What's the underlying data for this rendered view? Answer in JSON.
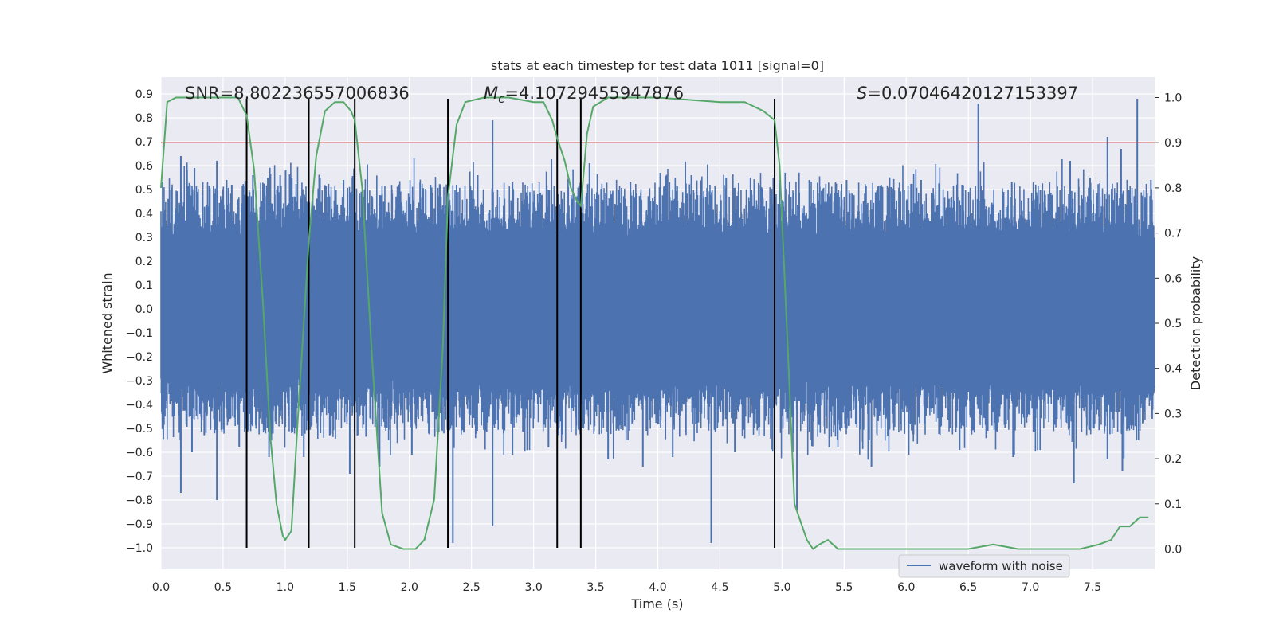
{
  "chart_data": {
    "type": "line",
    "title": "stats at each timestep for test data 1011 [signal=0]",
    "xlabel": "Time (s)",
    "ylabel": "Whitened strain",
    "y2label": "Detection probability",
    "xlim": [
      0.0,
      8.0
    ],
    "ylim": [
      -1.09,
      0.97
    ],
    "y2lim": [
      -0.045,
      1.045
    ],
    "x_ticks": [
      "0.0",
      "0.5",
      "1.0",
      "1.5",
      "2.0",
      "2.5",
      "3.0",
      "3.5",
      "4.0",
      "4.5",
      "5.0",
      "5.5",
      "6.0",
      "6.5",
      "7.0",
      "7.5"
    ],
    "y_ticks": [
      "0.9",
      "0.8",
      "0.7",
      "0.6",
      "0.5",
      "0.4",
      "0.3",
      "0.2",
      "0.1",
      "0.0",
      "−0.1",
      "−0.2",
      "−0.3",
      "−0.4",
      "−0.5",
      "−0.6",
      "−0.7",
      "−0.8",
      "−0.9",
      "−1.0"
    ],
    "y2_ticks": [
      "1.0",
      "0.9",
      "0.8",
      "0.7",
      "0.6",
      "0.5",
      "0.4",
      "0.3",
      "0.2",
      "0.1",
      "0.0"
    ],
    "annotations": {
      "snr_label": "SNR=8.802236557006836",
      "mc_label_prefix": "M",
      "mc_label_sub": "c",
      "mc_label_value": "=4.10729455947876",
      "s_label_prefix": "S",
      "s_label_value": "=0.07046420127153397"
    },
    "threshold": 0.9,
    "vertical_lines_x": [
      0.69,
      1.19,
      1.56,
      2.31,
      3.19,
      3.38,
      4.94
    ],
    "vertical_lines_ymax": 0.88,
    "grid": true,
    "legend": {
      "position": "bottom-right",
      "entries": [
        "waveform with noise"
      ]
    },
    "series": [
      {
        "name": "waveform with noise",
        "axis": "left",
        "style": "noise-band",
        "core_range": [
          -0.3,
          0.3
        ],
        "peaks_up": [
          [
            0.16,
            0.64
          ],
          [
            0.21,
            0.58
          ],
          [
            0.27,
            0.59
          ],
          [
            0.45,
            0.62
          ],
          [
            0.57,
            0.52
          ],
          [
            0.74,
            0.56
          ],
          [
            0.86,
            0.55
          ],
          [
            0.96,
            0.56
          ],
          [
            1.28,
            0.55
          ],
          [
            1.35,
            0.48
          ],
          [
            1.47,
            0.54
          ],
          [
            1.62,
            0.46
          ],
          [
            1.78,
            0.48
          ],
          [
            2.17,
            0.52
          ],
          [
            2.38,
            0.52
          ],
          [
            2.55,
            0.56
          ],
          [
            2.67,
            0.79
          ],
          [
            2.83,
            0.53
          ],
          [
            3.12,
            0.5
          ],
          [
            3.45,
            0.61
          ],
          [
            3.78,
            0.53
          ],
          [
            4.02,
            0.57
          ],
          [
            4.27,
            0.56
          ],
          [
            4.55,
            0.55
          ],
          [
            4.93,
            0.55
          ],
          [
            5.22,
            0.54
          ],
          [
            5.52,
            0.54
          ],
          [
            5.88,
            0.51
          ],
          [
            6.12,
            0.54
          ],
          [
            6.45,
            0.52
          ],
          [
            6.58,
            0.86
          ],
          [
            6.85,
            0.53
          ],
          [
            7.08,
            0.5
          ],
          [
            7.32,
            0.62
          ],
          [
            7.48,
            0.55
          ],
          [
            7.62,
            0.72
          ],
          [
            7.73,
            0.67
          ],
          [
            7.86,
            0.88
          ],
          [
            7.97,
            0.54
          ]
        ],
        "peaks_down": [
          [
            0.16,
            -0.77
          ],
          [
            0.25,
            -0.6
          ],
          [
            0.45,
            -0.8
          ],
          [
            0.63,
            -0.58
          ],
          [
            0.87,
            -0.62
          ],
          [
            1.15,
            -0.62
          ],
          [
            1.52,
            -0.69
          ],
          [
            1.76,
            -0.66
          ],
          [
            2.02,
            -0.61
          ],
          [
            2.35,
            -0.98
          ],
          [
            2.67,
            -0.91
          ],
          [
            2.83,
            -0.61
          ],
          [
            3.12,
            -0.58
          ],
          [
            3.6,
            -0.63
          ],
          [
            3.88,
            -0.66
          ],
          [
            4.12,
            -0.62
          ],
          [
            4.43,
            -0.98
          ],
          [
            4.62,
            -0.6
          ],
          [
            5.12,
            -0.84
          ],
          [
            5.38,
            -0.58
          ],
          [
            5.72,
            -0.66
          ],
          [
            6.02,
            -0.61
          ],
          [
            6.43,
            -0.59
          ],
          [
            6.86,
            -0.62
          ],
          [
            7.35,
            -0.73
          ],
          [
            7.62,
            -0.63
          ],
          [
            7.74,
            -0.68
          ],
          [
            7.98,
            -0.46
          ]
        ]
      },
      {
        "name": "",
        "axis": "right",
        "style": "line",
        "points": [
          [
            0.0,
            0.8
          ],
          [
            0.05,
            0.99
          ],
          [
            0.12,
            1.0
          ],
          [
            0.3,
            1.0
          ],
          [
            0.5,
            1.0
          ],
          [
            0.62,
            1.0
          ],
          [
            0.69,
            0.96
          ],
          [
            0.75,
            0.84
          ],
          [
            0.82,
            0.55
          ],
          [
            0.88,
            0.25
          ],
          [
            0.93,
            0.1
          ],
          [
            0.98,
            0.03
          ],
          [
            1.0,
            0.02
          ],
          [
            1.05,
            0.04
          ],
          [
            1.1,
            0.28
          ],
          [
            1.19,
            0.68
          ],
          [
            1.25,
            0.87
          ],
          [
            1.32,
            0.97
          ],
          [
            1.4,
            0.99
          ],
          [
            1.47,
            0.99
          ],
          [
            1.53,
            0.97
          ],
          [
            1.56,
            0.95
          ],
          [
            1.62,
            0.8
          ],
          [
            1.7,
            0.42
          ],
          [
            1.78,
            0.08
          ],
          [
            1.85,
            0.01
          ],
          [
            1.95,
            0.0
          ],
          [
            2.05,
            0.0
          ],
          [
            2.12,
            0.02
          ],
          [
            2.2,
            0.11
          ],
          [
            2.27,
            0.45
          ],
          [
            2.31,
            0.78
          ],
          [
            2.38,
            0.94
          ],
          [
            2.45,
            0.99
          ],
          [
            2.6,
            1.0
          ],
          [
            2.8,
            1.0
          ],
          [
            3.0,
            0.99
          ],
          [
            3.08,
            0.99
          ],
          [
            3.15,
            0.95
          ],
          [
            3.19,
            0.91
          ],
          [
            3.25,
            0.86
          ],
          [
            3.3,
            0.8
          ],
          [
            3.35,
            0.77
          ],
          [
            3.38,
            0.76
          ],
          [
            3.43,
            0.92
          ],
          [
            3.48,
            0.98
          ],
          [
            3.6,
            1.0
          ],
          [
            4.0,
            1.0
          ],
          [
            4.5,
            0.99
          ],
          [
            4.7,
            0.99
          ],
          [
            4.85,
            0.97
          ],
          [
            4.94,
            0.95
          ],
          [
            4.98,
            0.85
          ],
          [
            5.05,
            0.42
          ],
          [
            5.1,
            0.1
          ],
          [
            5.2,
            0.02
          ],
          [
            5.25,
            0.0
          ],
          [
            5.3,
            0.01
          ],
          [
            5.37,
            0.02
          ],
          [
            5.45,
            0.0
          ],
          [
            5.6,
            0.0
          ],
          [
            5.8,
            0.0
          ],
          [
            6.0,
            0.0
          ],
          [
            6.5,
            0.0
          ],
          [
            6.7,
            0.01
          ],
          [
            6.9,
            0.0
          ],
          [
            7.2,
            0.0
          ],
          [
            7.4,
            0.0
          ],
          [
            7.55,
            0.01
          ],
          [
            7.65,
            0.02
          ],
          [
            7.72,
            0.05
          ],
          [
            7.8,
            0.05
          ],
          [
            7.88,
            0.07
          ],
          [
            7.95,
            0.07
          ]
        ]
      }
    ]
  },
  "colors": {
    "plot_bg": "#eaeaf2",
    "grid": "#ffffff",
    "waveform": "#4c72b0",
    "probability": "#55a868",
    "threshold": "#c44e52",
    "vlines": "#000000",
    "text": "#262626"
  }
}
